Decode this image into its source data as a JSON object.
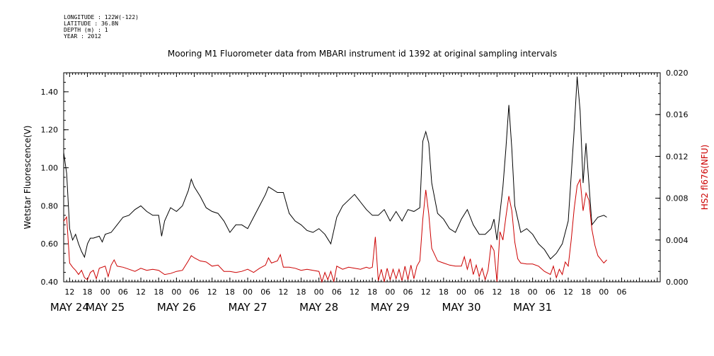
{
  "header": {
    "longitude": "LONGITUDE : 122W(-122)",
    "latitude": "LATITUDE : 36.8N",
    "depth": "DEPTH (m) : 1",
    "year": "YEAR : 2012"
  },
  "chart_data": {
    "type": "line",
    "title": "Mooring M1 Fluorometer data from MBARI instrument id 1392 at original sampling intervals",
    "ylabel": "Wetstar Fluorescence(V)",
    "y2label": "HS2 fl676(NFU)",
    "ylim": [
      0.4,
      1.5
    ],
    "y2lim": [
      0.0,
      0.02
    ],
    "xlim": [
      10,
      211
    ],
    "x_units": "hours since 2012-05-24 00:00",
    "yticks": [
      "0.40",
      "0.60",
      "0.80",
      "1.00",
      "1.20",
      "1.40"
    ],
    "y2ticks": [
      "0.000",
      "0.004",
      "0.008",
      "0.012",
      "0.016",
      "0.020"
    ],
    "hour_labels": [
      "12",
      "18",
      "00",
      "06",
      "12",
      "18",
      "00",
      "06",
      "12",
      "18",
      "00",
      "06",
      "12",
      "18",
      "00",
      "06",
      "12",
      "18",
      "00",
      "06",
      "12",
      "18",
      "00",
      "06",
      "12",
      "18",
      "00",
      "06",
      "12",
      "18",
      "00",
      "06"
    ],
    "day_labels": [
      "MAY 24",
      "MAY 25",
      "MAY 26",
      "MAY 27",
      "MAY 28",
      "MAY 29",
      "MAY 30",
      "MAY 31"
    ],
    "series": [
      {
        "name": "Wetstar Fluorescence(V)",
        "axis": "left",
        "color": "#000000",
        "points": [
          [
            10,
            1.08
          ],
          [
            11,
            0.97
          ],
          [
            12,
            0.68
          ],
          [
            13,
            0.62
          ],
          [
            14,
            0.65
          ],
          [
            15,
            0.6
          ],
          [
            16,
            0.56
          ],
          [
            17,
            0.53
          ],
          [
            18,
            0.6
          ],
          [
            19,
            0.63
          ],
          [
            20,
            0.63
          ],
          [
            22,
            0.64
          ],
          [
            23,
            0.61
          ],
          [
            24,
            0.65
          ],
          [
            26,
            0.66
          ],
          [
            28,
            0.7
          ],
          [
            30,
            0.74
          ],
          [
            32,
            0.75
          ],
          [
            34,
            0.78
          ],
          [
            36,
            0.8
          ],
          [
            38,
            0.77
          ],
          [
            40,
            0.75
          ],
          [
            42,
            0.75
          ],
          [
            43,
            0.64
          ],
          [
            44,
            0.72
          ],
          [
            46,
            0.79
          ],
          [
            48,
            0.77
          ],
          [
            50,
            0.8
          ],
          [
            52,
            0.88
          ],
          [
            53,
            0.94
          ],
          [
            54,
            0.9
          ],
          [
            56,
            0.85
          ],
          [
            58,
            0.79
          ],
          [
            60,
            0.77
          ],
          [
            62,
            0.76
          ],
          [
            64,
            0.72
          ],
          [
            66,
            0.66
          ],
          [
            68,
            0.7
          ],
          [
            70,
            0.7
          ],
          [
            72,
            0.68
          ],
          [
            74,
            0.74
          ],
          [
            76,
            0.8
          ],
          [
            78,
            0.86
          ],
          [
            79,
            0.9
          ],
          [
            80,
            0.89
          ],
          [
            82,
            0.87
          ],
          [
            84,
            0.87
          ],
          [
            86,
            0.76
          ],
          [
            88,
            0.72
          ],
          [
            90,
            0.7
          ],
          [
            92,
            0.67
          ],
          [
            94,
            0.66
          ],
          [
            96,
            0.68
          ],
          [
            98,
            0.65
          ],
          [
            100,
            0.6
          ],
          [
            102,
            0.74
          ],
          [
            104,
            0.8
          ],
          [
            106,
            0.83
          ],
          [
            108,
            0.86
          ],
          [
            110,
            0.82
          ],
          [
            112,
            0.78
          ],
          [
            114,
            0.75
          ],
          [
            116,
            0.75
          ],
          [
            118,
            0.78
          ],
          [
            120,
            0.72
          ],
          [
            122,
            0.77
          ],
          [
            124,
            0.72
          ],
          [
            126,
            0.78
          ],
          [
            128,
            0.77
          ],
          [
            130,
            0.79
          ],
          [
            131,
            1.14
          ],
          [
            132,
            1.19
          ],
          [
            133,
            1.13
          ],
          [
            134,
            0.92
          ],
          [
            136,
            0.76
          ],
          [
            138,
            0.73
          ],
          [
            140,
            0.68
          ],
          [
            142,
            0.66
          ],
          [
            144,
            0.73
          ],
          [
            146,
            0.78
          ],
          [
            148,
            0.7
          ],
          [
            150,
            0.65
          ],
          [
            152,
            0.65
          ],
          [
            154,
            0.68
          ],
          [
            155,
            0.73
          ],
          [
            156,
            0.62
          ],
          [
            158,
            0.9
          ],
          [
            159,
            1.1
          ],
          [
            160,
            1.33
          ],
          [
            161,
            1.1
          ],
          [
            162,
            0.8
          ],
          [
            164,
            0.66
          ],
          [
            166,
            0.68
          ],
          [
            168,
            0.65
          ],
          [
            170,
            0.6
          ],
          [
            172,
            0.57
          ],
          [
            174,
            0.52
          ],
          [
            176,
            0.55
          ],
          [
            178,
            0.6
          ],
          [
            180,
            0.72
          ],
          [
            182,
            1.2
          ],
          [
            183,
            1.48
          ],
          [
            184,
            1.3
          ],
          [
            185,
            0.92
          ],
          [
            186,
            1.13
          ],
          [
            188,
            0.7
          ],
          [
            190,
            0.74
          ],
          [
            192,
            0.75
          ],
          [
            193,
            0.74
          ]
        ]
      },
      {
        "name": "HS2 fl676(NFU)",
        "axis": "right",
        "color": "#cc0000",
        "points": [
          [
            10,
            0.0058
          ],
          [
            11,
            0.0062
          ],
          [
            12,
            0.0018
          ],
          [
            13,
            0.0014
          ],
          [
            14,
            0.0011
          ],
          [
            15,
            0.0007
          ],
          [
            16,
            0.0011
          ],
          [
            17,
            0.0004
          ],
          [
            18,
            0.0002
          ],
          [
            19,
            0.0009
          ],
          [
            20,
            0.0011
          ],
          [
            21,
            0.0003
          ],
          [
            22,
            0.0013
          ],
          [
            24,
            0.0015
          ],
          [
            25,
            0.0005
          ],
          [
            26,
            0.0016
          ],
          [
            27,
            0.0021
          ],
          [
            28,
            0.0015
          ],
          [
            30,
            0.0014
          ],
          [
            32,
            0.0012
          ],
          [
            34,
            0.001
          ],
          [
            36,
            0.0013
          ],
          [
            38,
            0.0011
          ],
          [
            40,
            0.0012
          ],
          [
            42,
            0.0011
          ],
          [
            44,
            0.0007
          ],
          [
            46,
            0.0008
          ],
          [
            48,
            0.001
          ],
          [
            50,
            0.0011
          ],
          [
            52,
            0.002
          ],
          [
            53,
            0.0025
          ],
          [
            54,
            0.0023
          ],
          [
            56,
            0.002
          ],
          [
            58,
            0.0019
          ],
          [
            60,
            0.0015
          ],
          [
            62,
            0.0016
          ],
          [
            64,
            0.001
          ],
          [
            66,
            0.001
          ],
          [
            68,
            0.0009
          ],
          [
            70,
            0.001
          ],
          [
            72,
            0.0012
          ],
          [
            74,
            0.0009
          ],
          [
            76,
            0.0013
          ],
          [
            78,
            0.0016
          ],
          [
            79,
            0.0023
          ],
          [
            80,
            0.0018
          ],
          [
            82,
            0.002
          ],
          [
            83,
            0.0026
          ],
          [
            84,
            0.0014
          ],
          [
            86,
            0.0014
          ],
          [
            88,
            0.0013
          ],
          [
            90,
            0.0011
          ],
          [
            92,
            0.0012
          ],
          [
            94,
            0.0011
          ],
          [
            96,
            0.001
          ],
          [
            97,
            0.0
          ],
          [
            98,
            0.0009
          ],
          [
            99,
            0.0002
          ],
          [
            100,
            0.001
          ],
          [
            101,
            0.0
          ],
          [
            102,
            0.0015
          ],
          [
            104,
            0.0012
          ],
          [
            106,
            0.0014
          ],
          [
            108,
            0.0013
          ],
          [
            110,
            0.0012
          ],
          [
            112,
            0.0014
          ],
          [
            113,
            0.0013
          ],
          [
            114,
            0.0014
          ],
          [
            115,
            0.0043
          ],
          [
            116,
            0.0001
          ],
          [
            117,
            0.0012
          ],
          [
            118,
            0.0
          ],
          [
            119,
            0.0013
          ],
          [
            120,
            0.0002
          ],
          [
            121,
            0.0012
          ],
          [
            122,
            0.0003
          ],
          [
            123,
            0.0012
          ],
          [
            124,
            0.0001
          ],
          [
            125,
            0.0015
          ],
          [
            126,
            0.0002
          ],
          [
            127,
            0.0016
          ],
          [
            128,
            0.0003
          ],
          [
            129,
            0.0015
          ],
          [
            130,
            0.002
          ],
          [
            131,
            0.006
          ],
          [
            132,
            0.0088
          ],
          [
            133,
            0.0065
          ],
          [
            134,
            0.0032
          ],
          [
            136,
            0.002
          ],
          [
            138,
            0.0018
          ],
          [
            140,
            0.0016
          ],
          [
            142,
            0.0015
          ],
          [
            144,
            0.0015
          ],
          [
            145,
            0.0024
          ],
          [
            146,
            0.0012
          ],
          [
            147,
            0.0022
          ],
          [
            148,
            0.0007
          ],
          [
            149,
            0.0016
          ],
          [
            150,
            0.0005
          ],
          [
            151,
            0.0013
          ],
          [
            152,
            0.0002
          ],
          [
            153,
            0.0011
          ],
          [
            154,
            0.0035
          ],
          [
            155,
            0.003
          ],
          [
            156,
            0.0
          ],
          [
            157,
            0.0048
          ],
          [
            158,
            0.004
          ],
          [
            159,
            0.0062
          ],
          [
            160,
            0.0082
          ],
          [
            161,
            0.0068
          ],
          [
            162,
            0.0038
          ],
          [
            163,
            0.0022
          ],
          [
            164,
            0.0018
          ],
          [
            166,
            0.0017
          ],
          [
            168,
            0.0017
          ],
          [
            170,
            0.0015
          ],
          [
            172,
            0.001
          ],
          [
            174,
            0.0007
          ],
          [
            175,
            0.0015
          ],
          [
            176,
            0.0004
          ],
          [
            177,
            0.0012
          ],
          [
            178,
            0.0007
          ],
          [
            179,
            0.0019
          ],
          [
            180,
            0.0015
          ],
          [
            181,
            0.004
          ],
          [
            182,
            0.007
          ],
          [
            183,
            0.0092
          ],
          [
            184,
            0.0098
          ],
          [
            185,
            0.0068
          ],
          [
            186,
            0.0085
          ],
          [
            187,
            0.0078
          ],
          [
            188,
            0.005
          ],
          [
            189,
            0.0035
          ],
          [
            190,
            0.0025
          ],
          [
            192,
            0.0018
          ],
          [
            193,
            0.0021
          ]
        ]
      }
    ]
  }
}
